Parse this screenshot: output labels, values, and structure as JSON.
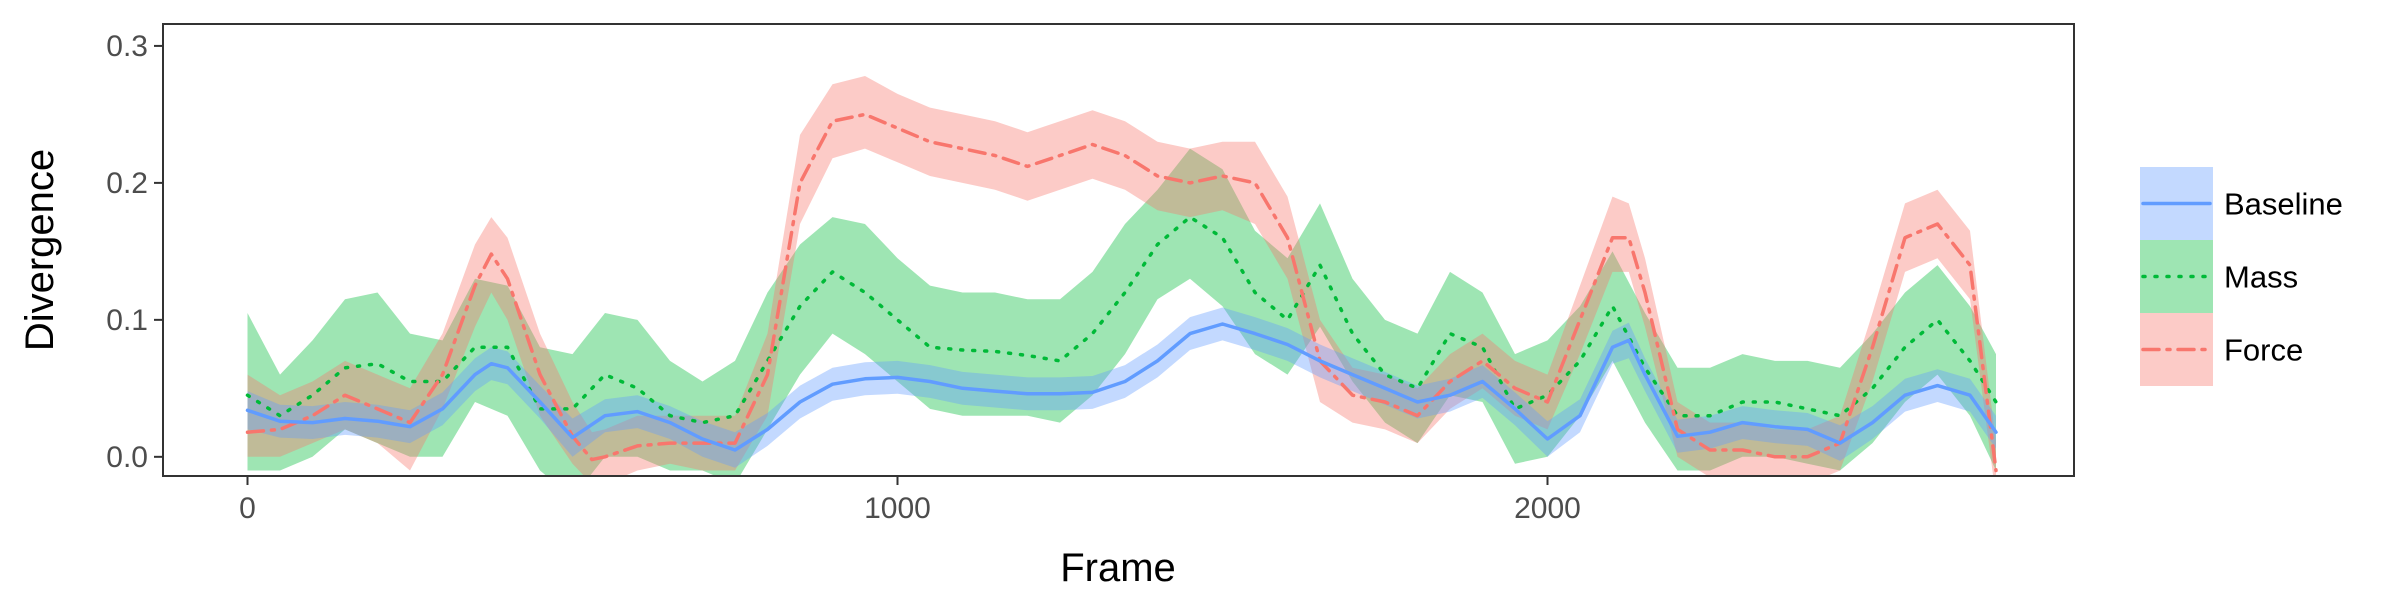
{
  "chart_data": {
    "type": "line",
    "xlabel": "Frame",
    "ylabel": "Divergence",
    "xlim": [
      -130,
      2810
    ],
    "ylim": [
      -0.014,
      0.316
    ],
    "xticks": [
      0,
      1000,
      2000
    ],
    "yticks": [
      0.0,
      0.1,
      0.2,
      0.3
    ],
    "ytick_labels": [
      "0.0",
      "0.1",
      "0.2",
      "0.3"
    ],
    "grid": false,
    "legend_position": "right",
    "series": [
      {
        "name": "Mass",
        "color": "#00BA38",
        "line_style": "dotted",
        "x": [
          0,
          50,
          100,
          150,
          200,
          250,
          300,
          350,
          400,
          450,
          500,
          550,
          600,
          650,
          700,
          750,
          800,
          850,
          900,
          950,
          1000,
          1050,
          1100,
          1150,
          1200,
          1250,
          1300,
          1350,
          1400,
          1450,
          1500,
          1550,
          1600,
          1650,
          1700,
          1750,
          1800,
          1850,
          1900,
          1950,
          2000,
          2050,
          2100,
          2150,
          2200,
          2250,
          2300,
          2350,
          2400,
          2450,
          2500,
          2550,
          2600,
          2650,
          2690
        ],
        "y": [
          0.045,
          0.03,
          0.045,
          0.065,
          0.068,
          0.055,
          0.055,
          0.08,
          0.08,
          0.035,
          0.035,
          0.06,
          0.05,
          0.03,
          0.025,
          0.03,
          0.07,
          0.11,
          0.135,
          0.12,
          0.1,
          0.08,
          0.078,
          0.077,
          0.074,
          0.07,
          0.09,
          0.12,
          0.155,
          0.175,
          0.16,
          0.12,
          0.1,
          0.14,
          0.09,
          0.06,
          0.05,
          0.09,
          0.08,
          0.035,
          0.045,
          0.07,
          0.11,
          0.065,
          0.03,
          0.03,
          0.04,
          0.04,
          0.035,
          0.03,
          0.05,
          0.08,
          0.1,
          0.07,
          0.04
        ],
        "lower": [
          -0.01,
          -0.01,
          0.0,
          0.02,
          0.01,
          0.0,
          0.0,
          0.04,
          0.03,
          -0.01,
          -0.03,
          0.0,
          0.0,
          -0.01,
          -0.01,
          -0.02,
          0.02,
          0.06,
          0.09,
          0.075,
          0.055,
          0.035,
          0.03,
          0.03,
          0.03,
          0.025,
          0.045,
          0.075,
          0.115,
          0.13,
          0.11,
          0.075,
          0.06,
          0.095,
          0.055,
          0.025,
          0.01,
          0.045,
          0.04,
          -0.005,
          0.0,
          0.03,
          0.07,
          0.025,
          -0.01,
          -0.01,
          0.0,
          0.0,
          -0.005,
          -0.01,
          0.01,
          0.04,
          0.06,
          0.03,
          -0.01
        ],
        "upper": [
          0.105,
          0.06,
          0.085,
          0.115,
          0.12,
          0.09,
          0.085,
          0.13,
          0.125,
          0.08,
          0.075,
          0.105,
          0.1,
          0.07,
          0.055,
          0.07,
          0.12,
          0.155,
          0.175,
          0.17,
          0.145,
          0.125,
          0.12,
          0.12,
          0.115,
          0.115,
          0.135,
          0.17,
          0.195,
          0.225,
          0.21,
          0.165,
          0.145,
          0.185,
          0.13,
          0.1,
          0.09,
          0.135,
          0.12,
          0.075,
          0.085,
          0.11,
          0.15,
          0.105,
          0.065,
          0.065,
          0.075,
          0.07,
          0.07,
          0.065,
          0.09,
          0.12,
          0.14,
          0.11,
          0.075
        ]
      },
      {
        "name": "Force",
        "color": "#F8766D",
        "line_style": "dashdot",
        "x": [
          0,
          50,
          100,
          150,
          200,
          250,
          300,
          350,
          375,
          400,
          450,
          500,
          530,
          550,
          600,
          650,
          700,
          750,
          800,
          850,
          900,
          950,
          1000,
          1050,
          1100,
          1150,
          1200,
          1250,
          1300,
          1350,
          1400,
          1450,
          1500,
          1550,
          1600,
          1650,
          1700,
          1750,
          1800,
          1850,
          1900,
          1950,
          2000,
          2050,
          2100,
          2125,
          2150,
          2200,
          2250,
          2300,
          2350,
          2400,
          2450,
          2500,
          2550,
          2600,
          2650,
          2690
        ],
        "y": [
          0.018,
          0.02,
          0.03,
          0.045,
          0.035,
          0.025,
          0.06,
          0.125,
          0.148,
          0.13,
          0.06,
          0.015,
          -0.002,
          0.0,
          0.008,
          0.01,
          0.01,
          0.01,
          0.06,
          0.2,
          0.245,
          0.25,
          0.24,
          0.23,
          0.225,
          0.22,
          0.212,
          0.22,
          0.228,
          0.22,
          0.205,
          0.2,
          0.205,
          0.2,
          0.16,
          0.07,
          0.045,
          0.04,
          0.03,
          0.055,
          0.07,
          0.05,
          0.04,
          0.1,
          0.16,
          0.16,
          0.12,
          0.02,
          0.005,
          0.005,
          0.0,
          0.0,
          0.01,
          0.08,
          0.16,
          0.17,
          0.14,
          -0.01
        ],
        "lower": [
          0.0,
          0.0,
          0.01,
          0.02,
          0.01,
          -0.01,
          0.035,
          0.095,
          0.12,
          0.1,
          0.03,
          -0.005,
          -0.02,
          -0.02,
          -0.01,
          -0.005,
          -0.01,
          -0.01,
          0.03,
          0.17,
          0.218,
          0.225,
          0.215,
          0.205,
          0.2,
          0.195,
          0.187,
          0.195,
          0.203,
          0.195,
          0.18,
          0.175,
          0.18,
          0.17,
          0.13,
          0.04,
          0.025,
          0.02,
          0.01,
          0.035,
          0.05,
          0.03,
          0.02,
          0.075,
          0.135,
          0.135,
          0.095,
          0.0,
          -0.015,
          -0.015,
          -0.02,
          -0.02,
          -0.01,
          0.055,
          0.135,
          0.145,
          0.115,
          -0.03
        ],
        "upper": [
          0.06,
          0.045,
          0.055,
          0.07,
          0.06,
          0.05,
          0.09,
          0.155,
          0.175,
          0.16,
          0.09,
          0.04,
          0.018,
          0.02,
          0.03,
          0.03,
          0.03,
          0.03,
          0.09,
          0.235,
          0.272,
          0.278,
          0.265,
          0.255,
          0.25,
          0.245,
          0.237,
          0.245,
          0.253,
          0.245,
          0.23,
          0.225,
          0.23,
          0.23,
          0.19,
          0.1,
          0.065,
          0.06,
          0.05,
          0.075,
          0.09,
          0.07,
          0.06,
          0.125,
          0.19,
          0.185,
          0.145,
          0.04,
          0.025,
          0.025,
          0.02,
          0.02,
          0.03,
          0.105,
          0.185,
          0.195,
          0.165,
          0.01
        ]
      },
      {
        "name": "Baseline",
        "color": "#619CFF",
        "line_style": "solid",
        "x": [
          0,
          50,
          100,
          150,
          200,
          250,
          300,
          350,
          375,
          400,
          450,
          500,
          550,
          600,
          650,
          700,
          750,
          800,
          850,
          900,
          950,
          1000,
          1050,
          1100,
          1150,
          1200,
          1250,
          1300,
          1350,
          1400,
          1450,
          1500,
          1550,
          1600,
          1650,
          1700,
          1750,
          1800,
          1850,
          1900,
          1950,
          2000,
          2050,
          2100,
          2125,
          2150,
          2200,
          2250,
          2300,
          2350,
          2400,
          2450,
          2500,
          2550,
          2600,
          2650,
          2690
        ],
        "y": [
          0.034,
          0.026,
          0.025,
          0.028,
          0.026,
          0.022,
          0.035,
          0.06,
          0.068,
          0.065,
          0.04,
          0.014,
          0.03,
          0.033,
          0.025,
          0.013,
          0.005,
          0.02,
          0.04,
          0.053,
          0.057,
          0.058,
          0.055,
          0.05,
          0.048,
          0.046,
          0.046,
          0.047,
          0.055,
          0.07,
          0.09,
          0.097,
          0.09,
          0.082,
          0.07,
          0.06,
          0.05,
          0.04,
          0.045,
          0.055,
          0.035,
          0.013,
          0.03,
          0.08,
          0.085,
          0.06,
          0.015,
          0.018,
          0.025,
          0.022,
          0.02,
          0.01,
          0.025,
          0.045,
          0.052,
          0.045,
          0.018
        ],
        "lower": [
          0.02,
          0.014,
          0.013,
          0.016,
          0.014,
          0.01,
          0.023,
          0.048,
          0.056,
          0.053,
          0.028,
          0.0,
          0.018,
          0.021,
          0.013,
          0.0,
          -0.008,
          0.008,
          0.028,
          0.041,
          0.045,
          0.046,
          0.043,
          0.038,
          0.036,
          0.034,
          0.034,
          0.035,
          0.043,
          0.058,
          0.078,
          0.085,
          0.078,
          0.07,
          0.058,
          0.048,
          0.038,
          0.028,
          0.033,
          0.043,
          0.023,
          0.0,
          0.018,
          0.068,
          0.072,
          0.048,
          0.003,
          0.006,
          0.013,
          0.01,
          0.008,
          -0.003,
          0.013,
          0.033,
          0.04,
          0.033,
          0.006
        ],
        "upper": [
          0.048,
          0.038,
          0.037,
          0.04,
          0.038,
          0.034,
          0.047,
          0.072,
          0.08,
          0.077,
          0.052,
          0.028,
          0.042,
          0.045,
          0.037,
          0.026,
          0.018,
          0.032,
          0.052,
          0.065,
          0.069,
          0.07,
          0.067,
          0.062,
          0.06,
          0.058,
          0.058,
          0.059,
          0.067,
          0.082,
          0.102,
          0.109,
          0.102,
          0.094,
          0.082,
          0.072,
          0.062,
          0.052,
          0.057,
          0.067,
          0.047,
          0.026,
          0.042,
          0.092,
          0.098,
          0.072,
          0.027,
          0.03,
          0.037,
          0.034,
          0.032,
          0.023,
          0.037,
          0.057,
          0.064,
          0.057,
          0.03
        ]
      }
    ],
    "legend": [
      {
        "name": "Baseline",
        "color": "#619CFF",
        "line_style": "solid"
      },
      {
        "name": "Mass",
        "color": "#00BA38",
        "line_style": "dotted"
      },
      {
        "name": "Force",
        "color": "#F8766D",
        "line_style": "dashdot"
      }
    ]
  }
}
